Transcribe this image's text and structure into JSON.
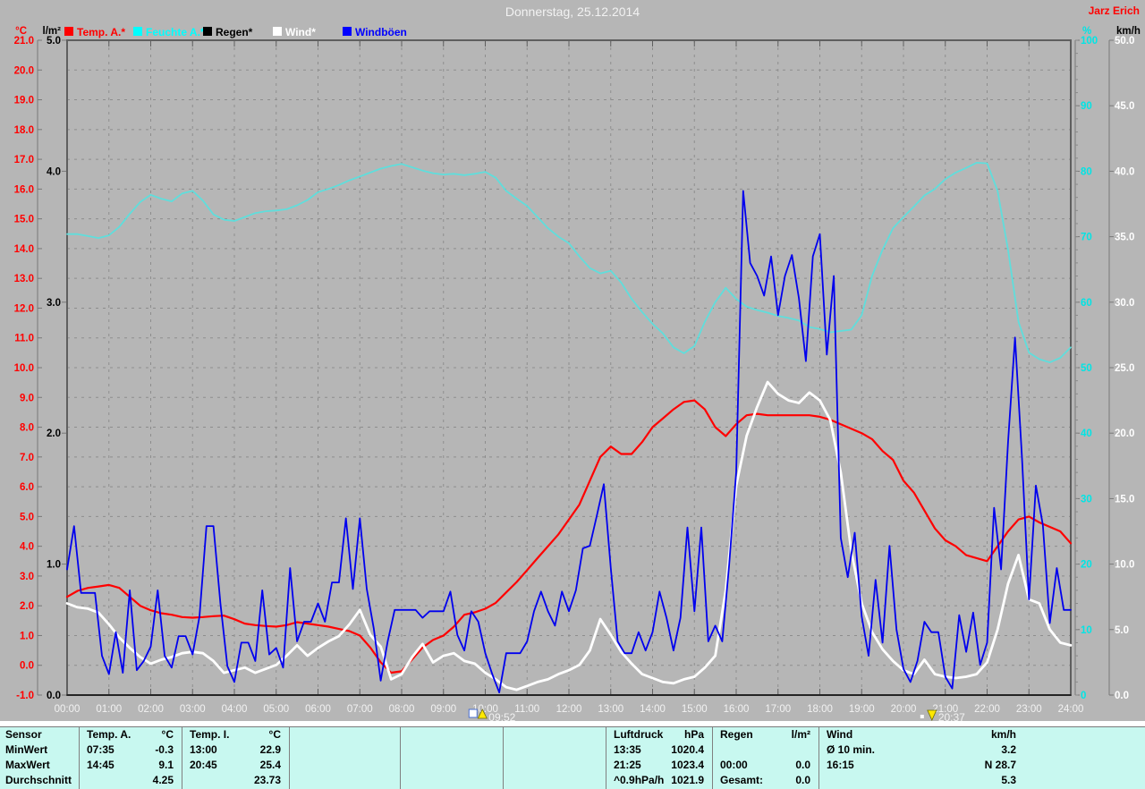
{
  "header": {
    "title": "Donnerstag, 25.12.2014",
    "author": "Jarz Erich"
  },
  "legend": [
    {
      "label": "Temp. A.*",
      "color": "#ff0000"
    },
    {
      "label": "Feuchte A.*",
      "color": "#00ffff"
    },
    {
      "label": "Regen*",
      "color": "#000000"
    },
    {
      "label": "Wind*",
      "color": "#ffffff"
    },
    {
      "label": "Windböen",
      "color": "#0000ff"
    }
  ],
  "chart_data": {
    "type": "line",
    "title": "Donnerstag, 25.12.2014",
    "x_labels": [
      "00:00",
      "01:00",
      "02:00",
      "03:00",
      "04:00",
      "05:00",
      "06:00",
      "07:00",
      "08:00",
      "09:00",
      "10:00",
      "11:00",
      "12:00",
      "13:00",
      "14:00",
      "15:00",
      "16:00",
      "17:00",
      "18:00",
      "19:00",
      "20:00",
      "21:00",
      "22:00",
      "23:00",
      "24:00"
    ],
    "grid": "dashed",
    "axes": {
      "temp": {
        "unit": "°C",
        "min": -1,
        "max": 21,
        "step": 1,
        "decimals": 1,
        "color": "#ff0000",
        "side": "left"
      },
      "rain": {
        "unit": "l/m²",
        "min": 0,
        "max": 5,
        "step": 1,
        "decimals": 1,
        "color": "#000000",
        "side": "left"
      },
      "humidity": {
        "unit": "%",
        "min": 0,
        "max": 100,
        "step": 10,
        "decimals": 0,
        "color": "#00e5e5",
        "side": "right"
      },
      "wind": {
        "unit": "km/h",
        "min": 0,
        "max": 50,
        "step": 5,
        "decimals": 1,
        "color": "#ffffff",
        "side": "right"
      }
    },
    "series": [
      {
        "name": "Regen",
        "axis": "rain",
        "color": "#000000",
        "width": 1.2,
        "step_min": 60,
        "values": [
          0,
          0,
          0,
          0,
          0,
          0,
          0,
          0,
          0,
          0,
          0,
          0,
          0,
          0,
          0,
          0,
          0,
          0,
          0,
          0,
          0,
          0,
          0,
          0,
          0
        ]
      },
      {
        "name": "Feuchte A.",
        "axis": "humidity",
        "color": "#5fdedc",
        "width": 1.8,
        "step_min": 15,
        "values": [
          70.4,
          70.4,
          70.1,
          69.8,
          70.2,
          71.5,
          73.5,
          75.3,
          76.4,
          75.8,
          75.4,
          76.6,
          77.0,
          75.5,
          73.4,
          72.6,
          72.4,
          73.0,
          73.6,
          73.9,
          74.0,
          74.2,
          74.8,
          75.6,
          76.8,
          77.3,
          77.9,
          78.6,
          79.2,
          79.8,
          80.4,
          80.8,
          81.1,
          80.6,
          80.1,
          79.7,
          79.5,
          79.6,
          79.4,
          79.6,
          79.9,
          79.0,
          77.0,
          75.8,
          74.7,
          73.0,
          71.3,
          70.0,
          69.0,
          67.0,
          65.2,
          64.4,
          64.8,
          63.0,
          60.5,
          58.5,
          56.7,
          55.2,
          53.1,
          52.2,
          53.3,
          57.0,
          60.0,
          62.2,
          60.5,
          59.3,
          58.8,
          58.4,
          57.9,
          57.6,
          57.2,
          56.2,
          55.9,
          55.4,
          55.6,
          55.8,
          58.0,
          64.0,
          68.0,
          71.3,
          73.0,
          74.6,
          76.3,
          77.3,
          78.8,
          79.8,
          80.5,
          81.3,
          81.2,
          77.0,
          68.0,
          57.0,
          52.3,
          51.3,
          50.8,
          51.5,
          53.1
        ]
      },
      {
        "name": "Temp. A.",
        "axis": "temp",
        "color": "#ff0000",
        "width": 2.2,
        "step_min": 15,
        "values": [
          2.3,
          2.5,
          2.6,
          2.65,
          2.7,
          2.6,
          2.3,
          2.0,
          1.85,
          1.75,
          1.7,
          1.62,
          1.6,
          1.62,
          1.65,
          1.67,
          1.55,
          1.4,
          1.35,
          1.32,
          1.3,
          1.35,
          1.45,
          1.4,
          1.35,
          1.3,
          1.22,
          1.15,
          1.0,
          0.6,
          0.1,
          -0.25,
          -0.2,
          0.2,
          0.6,
          0.85,
          1.0,
          1.3,
          1.7,
          1.78,
          1.9,
          2.1,
          2.45,
          2.8,
          3.2,
          3.6,
          4.0,
          4.4,
          4.9,
          5.4,
          6.2,
          7.0,
          7.35,
          7.1,
          7.1,
          7.5,
          8.0,
          8.3,
          8.6,
          8.85,
          8.9,
          8.6,
          8.0,
          7.7,
          8.1,
          8.4,
          8.45,
          8.4,
          8.4,
          8.4,
          8.4,
          8.4,
          8.35,
          8.25,
          8.1,
          7.95,
          7.8,
          7.6,
          7.2,
          6.9,
          6.2,
          5.8,
          5.2,
          4.6,
          4.2,
          4.0,
          3.7,
          3.6,
          3.5,
          4.0,
          4.5,
          4.9,
          5.0,
          4.8,
          4.65,
          4.5,
          4.1
        ]
      },
      {
        "name": "Wind",
        "axis": "wind",
        "color": "#ffffff",
        "width": 2.8,
        "step_min": 15,
        "values": [
          7.0,
          6.7,
          6.6,
          6.3,
          5.4,
          4.4,
          3.6,
          2.9,
          2.4,
          2.7,
          2.9,
          3.2,
          3.3,
          3.2,
          2.6,
          1.7,
          1.9,
          2.1,
          1.7,
          2.0,
          2.3,
          3.0,
          3.8,
          3.0,
          3.6,
          4.1,
          4.5,
          5.4,
          6.5,
          4.6,
          3.7,
          1.2,
          1.6,
          2.9,
          3.9,
          2.5,
          3.0,
          3.2,
          2.6,
          2.4,
          1.7,
          1.2,
          0.6,
          0.4,
          0.7,
          1.0,
          1.2,
          1.6,
          1.9,
          2.3,
          3.4,
          5.8,
          4.6,
          3.3,
          2.4,
          1.6,
          1.3,
          1.0,
          0.9,
          1.2,
          1.4,
          2.1,
          3.0,
          8.0,
          16.0,
          19.8,
          22.0,
          23.9,
          23.0,
          22.5,
          22.3,
          23.1,
          22.5,
          21.0,
          17.0,
          11.0,
          7.0,
          4.8,
          3.5,
          2.6,
          1.9,
          1.6,
          2.7,
          1.6,
          1.4,
          1.3,
          1.4,
          1.6,
          2.5,
          5.0,
          8.5,
          10.7,
          7.3,
          7.0,
          5.0,
          4.0,
          3.8
        ]
      },
      {
        "name": "Windböen",
        "axis": "wind",
        "color": "#0000ee",
        "width": 1.8,
        "step_min": 10,
        "values": [
          9.6,
          12.9,
          7.8,
          7.8,
          7.8,
          3.0,
          1.6,
          4.8,
          1.7,
          8.0,
          1.9,
          2.6,
          3.7,
          8.0,
          3.0,
          2.1,
          4.5,
          4.5,
          3.1,
          6.0,
          12.9,
          12.9,
          7.0,
          2.2,
          1.0,
          4.0,
          4.0,
          2.6,
          8.0,
          3.1,
          3.6,
          2.1,
          9.7,
          4.1,
          5.6,
          5.6,
          7.0,
          5.6,
          8.6,
          8.6,
          13.5,
          8.1,
          13.5,
          8.1,
          5.1,
          1.1,
          4.1,
          6.5,
          6.5,
          6.5,
          6.5,
          5.9,
          6.4,
          6.4,
          6.4,
          7.9,
          4.6,
          3.4,
          6.4,
          5.6,
          3.2,
          1.6,
          0.2,
          3.2,
          3.2,
          3.2,
          4.1,
          6.4,
          7.9,
          6.4,
          5.3,
          7.9,
          6.4,
          8.0,
          11.2,
          11.4,
          13.7,
          16.1,
          9.7,
          4.1,
          3.2,
          3.2,
          4.8,
          3.4,
          4.8,
          7.9,
          5.9,
          3.4,
          5.9,
          12.8,
          6.4,
          12.8,
          4.1,
          5.3,
          4.1,
          10.0,
          17.0,
          38.5,
          33.0,
          32.0,
          30.5,
          33.5,
          29.0,
          32.0,
          33.6,
          30.3,
          25.5,
          33.5,
          35.2,
          26.0,
          32.0,
          12.0,
          9.0,
          12.4,
          6.0,
          3.0,
          8.8,
          4.0,
          11.4,
          5.0,
          2.0,
          1.0,
          2.6,
          5.6,
          4.8,
          4.8,
          1.4,
          0.5,
          6.1,
          3.3,
          6.3,
          2.3,
          4.0,
          14.3,
          9.6,
          19.3,
          27.3,
          18.1,
          7.3,
          16.0,
          13.0,
          5.5,
          9.7,
          6.5,
          6.5
        ]
      }
    ],
    "sun_markers": [
      {
        "time": "09:52",
        "type": "sunrise"
      },
      {
        "time": "20:37",
        "type": "sunset"
      }
    ]
  },
  "table": {
    "row_labels": [
      "Sensor",
      "MinWert",
      "MaxWert",
      "Durchschnitt"
    ],
    "widths": [
      88,
      115,
      120,
      124,
      115,
      115,
      119,
      119,
      365
    ],
    "groups": [
      {
        "header": [
          "Temp. A.",
          "°C"
        ],
        "rows": [
          [
            "07:35",
            "-0.3"
          ],
          [
            "14:45",
            "9.1"
          ],
          [
            "",
            "4.25"
          ]
        ]
      },
      {
        "header": [
          "Temp. I.",
          "°C"
        ],
        "rows": [
          [
            "13:00",
            "22.9"
          ],
          [
            "20:45",
            "25.4"
          ],
          [
            "",
            "23.73"
          ]
        ]
      },
      {
        "header": [
          "",
          ""
        ],
        "rows": [
          [
            "",
            ""
          ],
          [
            "",
            ""
          ],
          [
            "",
            ""
          ]
        ]
      },
      {
        "header": [
          "",
          ""
        ],
        "rows": [
          [
            "",
            ""
          ],
          [
            "",
            ""
          ],
          [
            "",
            ""
          ]
        ]
      },
      {
        "header": [
          "",
          ""
        ],
        "rows": [
          [
            "",
            ""
          ],
          [
            "",
            ""
          ],
          [
            "",
            ""
          ]
        ]
      },
      {
        "header": [
          "Luftdruck",
          "hPa"
        ],
        "rows": [
          [
            "13:35",
            "1020.4"
          ],
          [
            "21:25",
            "1023.4"
          ],
          [
            "^0.9hPa/h",
            "1021.9"
          ]
        ]
      },
      {
        "header": [
          "Regen",
          "l/m²"
        ],
        "rows": [
          [
            "",
            ""
          ],
          [
            "00:00",
            "0.0"
          ],
          [
            "Gesamt:",
            "0.0"
          ]
        ]
      },
      {
        "header": [
          "Wind",
          "km/h"
        ],
        "rows": [
          [
            "Ø 10 min.",
            "3.2"
          ],
          [
            "16:15",
            "N 28.7"
          ],
          [
            "",
            "5.3"
          ]
        ]
      }
    ]
  }
}
